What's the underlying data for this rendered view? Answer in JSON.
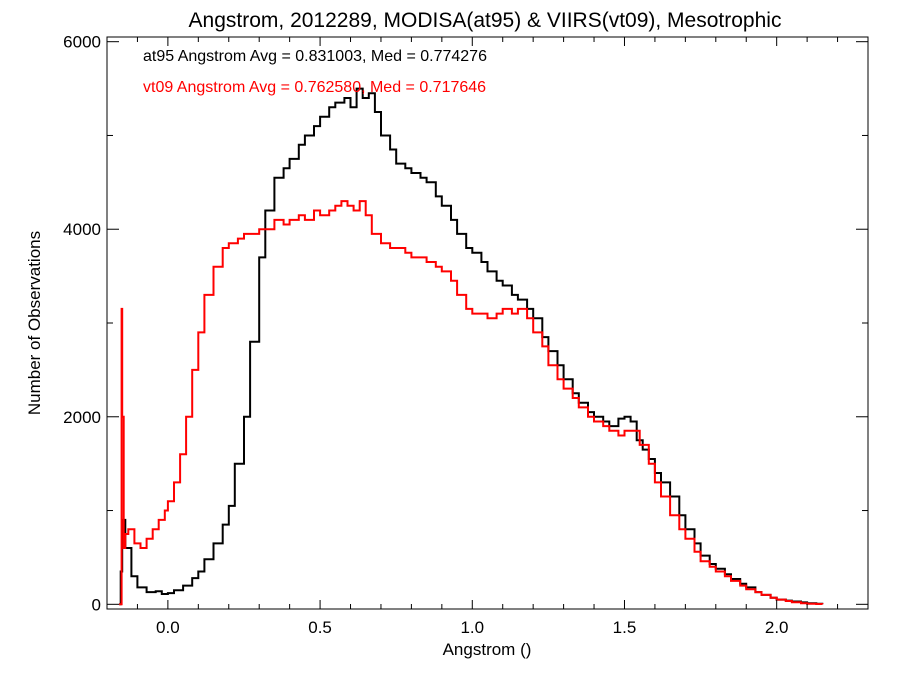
{
  "chart_data": {
    "type": "line",
    "title": "Angstrom, 2012289, MODISA(at95) & VIIRS(vt09), Mesotrophic",
    "xlabel": "Angstrom ()",
    "ylabel": "Number of Observations",
    "xlim": [
      -0.2,
      2.3
    ],
    "ylim": [
      -50,
      6050
    ],
    "xticks": [
      0.0,
      0.5,
      1.0,
      1.5,
      2.0
    ],
    "xtick_labels": [
      "0.0",
      "0.5",
      "1.0",
      "1.5",
      "2.0"
    ],
    "yticks": [
      0,
      2000,
      4000,
      6000
    ],
    "ytick_labels": [
      "0",
      "2000",
      "4000",
      "6000"
    ],
    "grid": false,
    "legend_placement": "top-left",
    "series": [
      {
        "name": "at95",
        "color": "#000000",
        "annotation": "at95 Angstrom Avg = 0.831003, Med = 0.774276",
        "x": [
          -0.16,
          -0.155,
          -0.15,
          -0.14,
          -0.12,
          -0.1,
          -0.07,
          -0.04,
          -0.02,
          0.0,
          0.02,
          0.05,
          0.08,
          0.1,
          0.12,
          0.15,
          0.18,
          0.2,
          0.22,
          0.25,
          0.27,
          0.3,
          0.32,
          0.35,
          0.38,
          0.4,
          0.43,
          0.45,
          0.48,
          0.5,
          0.53,
          0.55,
          0.58,
          0.6,
          0.62,
          0.64,
          0.66,
          0.68,
          0.7,
          0.73,
          0.75,
          0.78,
          0.8,
          0.83,
          0.85,
          0.88,
          0.9,
          0.93,
          0.95,
          0.98,
          1.0,
          1.03,
          1.05,
          1.08,
          1.1,
          1.13,
          1.15,
          1.18,
          1.2,
          1.23,
          1.25,
          1.28,
          1.3,
          1.33,
          1.35,
          1.38,
          1.4,
          1.43,
          1.45,
          1.48,
          1.5,
          1.52,
          1.54,
          1.56,
          1.58,
          1.6,
          1.62,
          1.65,
          1.68,
          1.7,
          1.73,
          1.75,
          1.78,
          1.8,
          1.83,
          1.85,
          1.88,
          1.9,
          1.93,
          1.95,
          1.98,
          2.0,
          2.03,
          2.05,
          2.08,
          2.1,
          2.13,
          2.15
        ],
        "y": [
          0,
          350,
          900,
          600,
          300,
          180,
          130,
          140,
          110,
          120,
          150,
          200,
          280,
          350,
          480,
          650,
          850,
          1050,
          1500,
          2000,
          2800,
          3700,
          4200,
          4550,
          4650,
          4750,
          4900,
          5000,
          5100,
          5200,
          5300,
          5350,
          5400,
          5300,
          5500,
          5400,
          5450,
          5250,
          5000,
          4850,
          4700,
          4650,
          4600,
          4550,
          4500,
          4350,
          4250,
          4100,
          3950,
          3800,
          3750,
          3650,
          3550,
          3450,
          3400,
          3300,
          3250,
          3150,
          3050,
          2850,
          2700,
          2550,
          2400,
          2250,
          2150,
          2050,
          2000,
          1950,
          1900,
          1980,
          2000,
          1950,
          1750,
          1650,
          1550,
          1400,
          1300,
          1150,
          950,
          800,
          650,
          520,
          430,
          380,
          320,
          270,
          220,
          180,
          130,
          100,
          70,
          50,
          40,
          30,
          20,
          12,
          6,
          0
        ]
      },
      {
        "name": "vt09",
        "color": "#ff0000",
        "annotation": "vt09 Angstrom Avg = 0.762580, Med = 0.717646",
        "x": [
          -0.16,
          -0.155,
          -0.152,
          -0.15,
          -0.145,
          -0.14,
          -0.13,
          -0.11,
          -0.09,
          -0.07,
          -0.05,
          -0.03,
          -0.01,
          0.0,
          0.02,
          0.04,
          0.06,
          0.08,
          0.1,
          0.12,
          0.15,
          0.18,
          0.2,
          0.23,
          0.25,
          0.28,
          0.3,
          0.33,
          0.35,
          0.38,
          0.4,
          0.43,
          0.45,
          0.48,
          0.5,
          0.53,
          0.55,
          0.57,
          0.59,
          0.61,
          0.63,
          0.65,
          0.67,
          0.7,
          0.73,
          0.75,
          0.78,
          0.8,
          0.83,
          0.85,
          0.88,
          0.9,
          0.93,
          0.95,
          0.98,
          1.0,
          1.03,
          1.05,
          1.08,
          1.1,
          1.13,
          1.15,
          1.18,
          1.2,
          1.23,
          1.25,
          1.28,
          1.3,
          1.33,
          1.35,
          1.38,
          1.4,
          1.43,
          1.45,
          1.48,
          1.5,
          1.52,
          1.55,
          1.58,
          1.6,
          1.62,
          1.65,
          1.68,
          1.7,
          1.73,
          1.75,
          1.78,
          1.8,
          1.83,
          1.85,
          1.88,
          1.9,
          1.93,
          1.95,
          1.98,
          2.0,
          2.03,
          2.05,
          2.08,
          2.1,
          2.13,
          2.15
        ],
        "y": [
          0,
          0,
          3150,
          2000,
          600,
          750,
          800,
          650,
          600,
          700,
          800,
          900,
          1000,
          1100,
          1300,
          1600,
          2000,
          2500,
          2900,
          3300,
          3600,
          3800,
          3850,
          3900,
          3950,
          3950,
          4000,
          4000,
          4100,
          4050,
          4100,
          4150,
          4100,
          4200,
          4150,
          4200,
          4250,
          4300,
          4250,
          4200,
          4300,
          4150,
          3950,
          3850,
          3800,
          3800,
          3750,
          3700,
          3700,
          3650,
          3600,
          3550,
          3450,
          3300,
          3150,
          3100,
          3100,
          3050,
          3100,
          3150,
          3100,
          3150,
          3050,
          2900,
          2750,
          2550,
          2400,
          2300,
          2200,
          2100,
          2000,
          1950,
          1900,
          1850,
          1800,
          1850,
          1850,
          1700,
          1500,
          1300,
          1150,
          950,
          800,
          700,
          560,
          460,
          400,
          350,
          300,
          250,
          200,
          160,
          130,
          100,
          70,
          50,
          35,
          22,
          12,
          6,
          3,
          0
        ]
      }
    ]
  }
}
